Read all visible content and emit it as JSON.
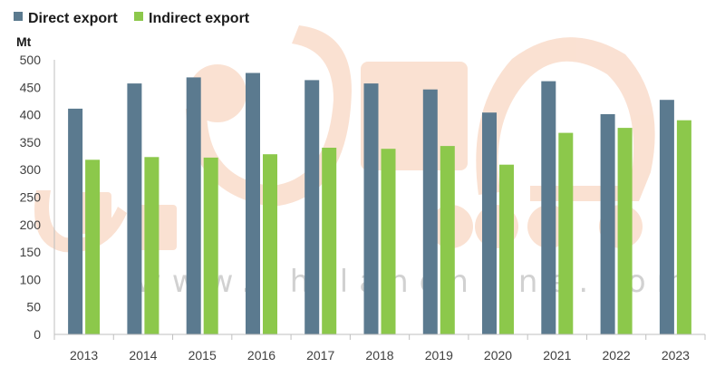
{
  "chart_data": {
    "type": "bar",
    "ylabel": "Mt",
    "ylim": [
      0,
      500
    ],
    "yticks": [
      0,
      50,
      100,
      150,
      200,
      250,
      300,
      350,
      400,
      450,
      500
    ],
    "categories": [
      "2013",
      "2014",
      "2015",
      "2016",
      "2017",
      "2018",
      "2019",
      "2020",
      "2021",
      "2022",
      "2023"
    ],
    "series": [
      {
        "name": "Direct export",
        "color": "#5b7a8f",
        "values": [
          411,
          457,
          468,
          476,
          463,
          457,
          446,
          404,
          461,
          401,
          427
        ]
      },
      {
        "name": "Indirect export",
        "color": "#8cc84b",
        "values": [
          318,
          323,
          322,
          328,
          340,
          338,
          343,
          309,
          367,
          376,
          390
        ]
      }
    ],
    "legend": "top-left",
    "grid": false
  },
  "watermark": {
    "text": "www.chilanonline.com"
  }
}
